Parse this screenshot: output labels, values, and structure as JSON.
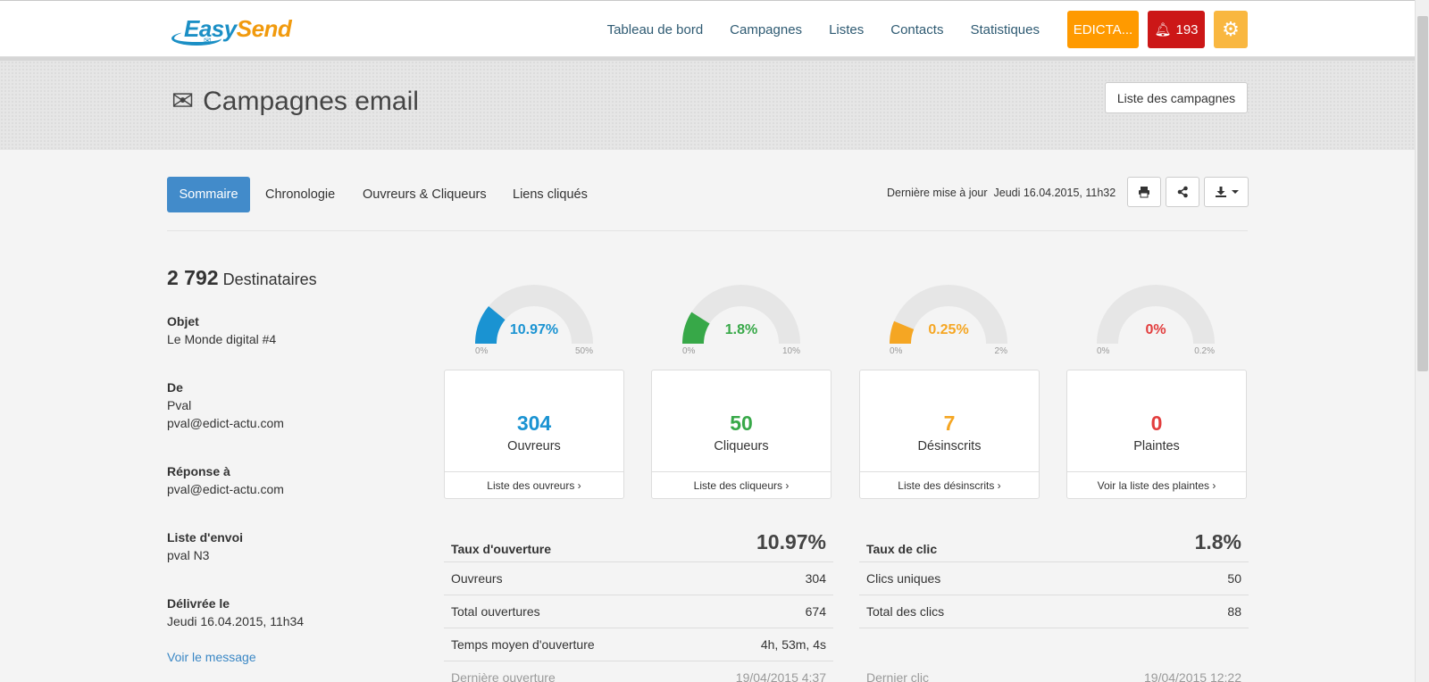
{
  "navbar": {
    "logo_part1": "Easy",
    "logo_part2": "Send",
    "links": [
      "Tableau de bord",
      "Campagnes",
      "Listes",
      "Contacts",
      "Statistiques"
    ],
    "account_label": "EDICTA...",
    "notif_count": "193"
  },
  "header": {
    "title": "Campagnes email",
    "list_button": "Liste des campagnes"
  },
  "tabs": [
    "Sommaire",
    "Chronologie",
    "Ouvreurs & Cliqueurs",
    "Liens cliqués"
  ],
  "last_update": {
    "label": "Dernière mise à jour",
    "value": "Jeudi 16.04.2015, 11h32"
  },
  "summary": {
    "recipients_count": "2 792",
    "recipients_label": "Destinataires",
    "fields": [
      {
        "label": "Objet",
        "values": [
          "Le Monde digital #4"
        ]
      },
      {
        "label": "De",
        "values": [
          "Pval",
          "pval@edict-actu.com"
        ]
      },
      {
        "label": "Réponse à",
        "values": [
          "pval@edict-actu.com"
        ]
      },
      {
        "label": "Liste d'envoi",
        "values": [
          "pval N3"
        ]
      },
      {
        "label": "Délivrée le",
        "values": [
          "Jeudi 16.04.2015, 11h34"
        ]
      }
    ],
    "view_message": "Voir le message"
  },
  "gauges": [
    {
      "value_label": "10.97%",
      "value": 10.97,
      "min_label": "0%",
      "max_label": "50%",
      "max": 50,
      "color": "#1a93d2"
    },
    {
      "value_label": "1.8%",
      "value": 1.8,
      "min_label": "0%",
      "max_label": "10%",
      "max": 10,
      "color": "#37a848"
    },
    {
      "value_label": "0.25%",
      "value": 0.25,
      "min_label": "0%",
      "max_label": "2%",
      "max": 2,
      "color": "#f5a623"
    },
    {
      "value_label": "0%",
      "value": 0,
      "min_label": "0%",
      "max_label": "0.2%",
      "max": 0.2,
      "color": "#e23d3d"
    }
  ],
  "stats": [
    {
      "number": "304",
      "label": "Ouvreurs",
      "link": "Liste des ouvreurs ›",
      "color": "#1a93d2"
    },
    {
      "number": "50",
      "label": "Cliqueurs",
      "link": "Liste des cliqueurs ›",
      "color": "#37a848"
    },
    {
      "number": "7",
      "label": "Désinscrits",
      "link": "Liste des désinscrits ›",
      "color": "#f5a623"
    },
    {
      "number": "0",
      "label": "Plaintes",
      "link": "Voir la liste des plaintes ›",
      "color": "#e23d3d"
    }
  ],
  "open_table": {
    "title": "Taux d'ouverture",
    "value": "10.97%",
    "rows": [
      [
        "Ouvreurs",
        "304"
      ],
      [
        "Total ouvertures",
        "674"
      ],
      [
        "Temps moyen d'ouverture",
        "4h, 53m, 4s"
      ],
      [
        "Dernière ouverture",
        "19/04/2015 4:37"
      ]
    ]
  },
  "click_table": {
    "title": "Taux de clic",
    "value": "1.8%",
    "rows": [
      [
        "Clics uniques",
        "50"
      ],
      [
        "Total des clics",
        "88"
      ],
      [
        "",
        ""
      ],
      [
        "Dernier clic",
        "19/04/2015 12:22"
      ]
    ]
  }
}
